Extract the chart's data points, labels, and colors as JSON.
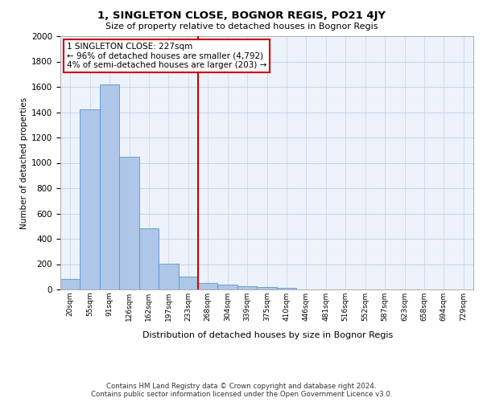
{
  "title": "1, SINGLETON CLOSE, BOGNOR REGIS, PO21 4JY",
  "subtitle": "Size of property relative to detached houses in Bognor Regis",
  "xlabel": "Distribution of detached houses by size in Bognor Regis",
  "ylabel": "Number of detached properties",
  "categories": [
    "20sqm",
    "55sqm",
    "91sqm",
    "126sqm",
    "162sqm",
    "197sqm",
    "233sqm",
    "268sqm",
    "304sqm",
    "339sqm",
    "375sqm",
    "410sqm",
    "446sqm",
    "481sqm",
    "516sqm",
    "552sqm",
    "587sqm",
    "623sqm",
    "658sqm",
    "694sqm",
    "729sqm"
  ],
  "values": [
    80,
    1420,
    1620,
    1050,
    480,
    205,
    100,
    48,
    38,
    25,
    20,
    10,
    0,
    0,
    0,
    0,
    0,
    0,
    0,
    0,
    0
  ],
  "bar_color": "#aec6e8",
  "bar_edge_color": "#5599cc",
  "vline_x": 6.5,
  "vline_color": "#cc0000",
  "annotation_text": "1 SINGLETON CLOSE: 227sqm\n← 96% of detached houses are smaller (4,792)\n4% of semi-detached houses are larger (203) →",
  "annotation_box_color": "#ffffff",
  "annotation_box_edge": "#cc0000",
  "ylim": [
    0,
    2000
  ],
  "yticks": [
    0,
    200,
    400,
    600,
    800,
    1000,
    1200,
    1400,
    1600,
    1800,
    2000
  ],
  "footer_line1": "Contains HM Land Registry data © Crown copyright and database right 2024.",
  "footer_line2": "Contains public sector information licensed under the Open Government Licence v3.0.",
  "bg_color": "#eef2fb",
  "grid_color": "#c8d0e8"
}
